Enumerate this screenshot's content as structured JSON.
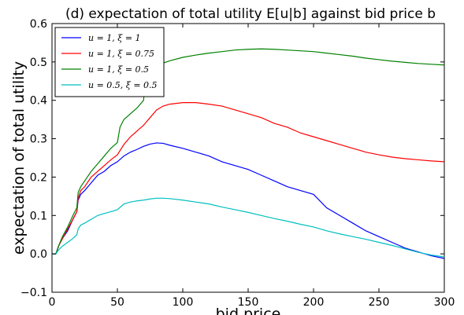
{
  "chart_data": {
    "type": "line",
    "title": "(d) expectation of total utility E[u|b] against bid price b",
    "xlabel": "bid price",
    "ylabel": "expectation of total utility",
    "xlim": [
      0,
      300
    ],
    "ylim": [
      -0.1,
      0.6
    ],
    "xticks": [
      "0",
      "50",
      "100",
      "150",
      "200",
      "250",
      "300"
    ],
    "yticks": [
      "−0.1",
      "0.0",
      "0.1",
      "0.2",
      "0.3",
      "0.4",
      "0.5",
      "0.6"
    ],
    "grid": false,
    "legend_position": "top-left",
    "series": [
      {
        "name": "u = 1, ξ = 1",
        "color": "#0000ff",
        "x": [
          0,
          3,
          5,
          8,
          12,
          16,
          19,
          20,
          22,
          25,
          30,
          35,
          40,
          45,
          50,
          55,
          60,
          65,
          70,
          75,
          80,
          85,
          90,
          100,
          110,
          120,
          130,
          140,
          150,
          160,
          170,
          180,
          190,
          200,
          210,
          220,
          230,
          240,
          250,
          260,
          270,
          280,
          290,
          300
        ],
        "y": [
          0.0,
          0.0,
          0.02,
          0.04,
          0.06,
          0.09,
          0.11,
          0.14,
          0.155,
          0.165,
          0.185,
          0.205,
          0.215,
          0.23,
          0.24,
          0.255,
          0.265,
          0.272,
          0.28,
          0.286,
          0.289,
          0.288,
          0.283,
          0.275,
          0.265,
          0.255,
          0.24,
          0.23,
          0.22,
          0.205,
          0.19,
          0.175,
          0.165,
          0.155,
          0.12,
          0.1,
          0.08,
          0.06,
          0.045,
          0.03,
          0.015,
          0.005,
          -0.005,
          -0.012
        ]
      },
      {
        "name": "u = 1, ξ = 0.75",
        "color": "#ff0000",
        "x": [
          0,
          3,
          5,
          8,
          12,
          16,
          19,
          20,
          22,
          25,
          30,
          35,
          40,
          45,
          50,
          55,
          60,
          65,
          70,
          75,
          80,
          85,
          90,
          100,
          110,
          120,
          130,
          140,
          150,
          160,
          170,
          180,
          190,
          200,
          210,
          220,
          230,
          240,
          250,
          260,
          270,
          280,
          290,
          300
        ],
        "y": [
          0.0,
          0.0,
          0.02,
          0.04,
          0.065,
          0.09,
          0.11,
          0.145,
          0.165,
          0.175,
          0.2,
          0.215,
          0.23,
          0.245,
          0.258,
          0.285,
          0.305,
          0.32,
          0.335,
          0.355,
          0.375,
          0.385,
          0.39,
          0.394,
          0.394,
          0.39,
          0.385,
          0.375,
          0.365,
          0.355,
          0.34,
          0.33,
          0.315,
          0.305,
          0.295,
          0.285,
          0.275,
          0.265,
          0.258,
          0.252,
          0.248,
          0.245,
          0.242,
          0.24
        ]
      },
      {
        "name": "u = 1, ξ = 0.5",
        "color": "#008000",
        "x": [
          0,
          3,
          5,
          8,
          12,
          16,
          19,
          20,
          22,
          25,
          30,
          35,
          40,
          45,
          50,
          52,
          55,
          60,
          65,
          70,
          72,
          75,
          80,
          85,
          90,
          100,
          110,
          120,
          130,
          140,
          150,
          160,
          170,
          180,
          190,
          200,
          210,
          220,
          230,
          240,
          250,
          260,
          270,
          280,
          290,
          300
        ],
        "y": [
          0.0,
          0.0,
          0.02,
          0.045,
          0.07,
          0.1,
          0.12,
          0.16,
          0.175,
          0.19,
          0.215,
          0.235,
          0.255,
          0.275,
          0.29,
          0.33,
          0.35,
          0.365,
          0.38,
          0.4,
          0.465,
          0.48,
          0.49,
          0.497,
          0.503,
          0.512,
          0.518,
          0.523,
          0.527,
          0.531,
          0.533,
          0.534,
          0.533,
          0.531,
          0.529,
          0.527,
          0.523,
          0.519,
          0.515,
          0.51,
          0.506,
          0.502,
          0.499,
          0.496,
          0.494,
          0.492
        ]
      },
      {
        "name": "u = 0.5, ξ = 0.5",
        "color": "#00bfbf",
        "x": [
          0,
          3,
          5,
          8,
          12,
          16,
          19,
          20,
          22,
          25,
          30,
          35,
          40,
          45,
          50,
          55,
          60,
          65,
          70,
          75,
          80,
          85,
          90,
          100,
          110,
          120,
          130,
          140,
          150,
          160,
          170,
          180,
          190,
          200,
          210,
          220,
          230,
          240,
          250,
          260,
          270,
          280,
          290,
          300
        ],
        "y": [
          0.0,
          0.0,
          0.01,
          0.02,
          0.03,
          0.04,
          0.05,
          0.065,
          0.075,
          0.08,
          0.09,
          0.1,
          0.105,
          0.11,
          0.115,
          0.13,
          0.135,
          0.138,
          0.14,
          0.143,
          0.145,
          0.145,
          0.144,
          0.14,
          0.135,
          0.13,
          0.122,
          0.115,
          0.108,
          0.1,
          0.092,
          0.085,
          0.077,
          0.07,
          0.06,
          0.052,
          0.045,
          0.038,
          0.03,
          0.022,
          0.013,
          0.004,
          -0.003,
          -0.008
        ]
      }
    ]
  }
}
